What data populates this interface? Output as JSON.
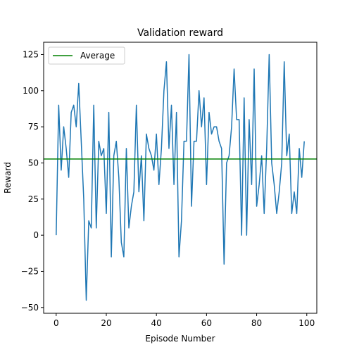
{
  "chart_data": {
    "type": "line",
    "title": "Validation reward",
    "xlabel": "Episode Number",
    "ylabel": "Reward",
    "xlim": [
      -5,
      104
    ],
    "ylim": [
      -54,
      133.5
    ],
    "xticks": [
      0,
      20,
      40,
      60,
      80,
      100
    ],
    "yticks": [
      -50,
      -25,
      0,
      25,
      50,
      75,
      100,
      125
    ],
    "grid": false,
    "legend_position": "upper-left",
    "series": [
      {
        "role": "data",
        "color": "#1f77b4",
        "x": [
          0,
          1,
          2,
          3,
          4,
          5,
          6,
          7,
          8,
          9,
          10,
          11,
          12,
          13,
          14,
          15,
          16,
          17,
          18,
          19,
          20,
          21,
          22,
          23,
          24,
          25,
          26,
          27,
          28,
          29,
          30,
          31,
          32,
          33,
          34,
          35,
          36,
          37,
          38,
          39,
          40,
          41,
          42,
          43,
          44,
          45,
          46,
          47,
          48,
          49,
          50,
          51,
          52,
          53,
          54,
          55,
          56,
          57,
          58,
          59,
          60,
          61,
          62,
          63,
          64,
          65,
          66,
          67,
          68,
          69,
          70,
          71,
          72,
          73,
          74,
          75,
          76,
          77,
          78,
          79,
          80,
          81,
          82,
          83,
          84,
          85,
          86,
          87,
          88,
          89,
          90,
          91,
          92,
          93,
          94,
          95,
          96,
          97,
          98,
          99
        ],
        "values": [
          0,
          90,
          45,
          75,
          60,
          40,
          85,
          90,
          75,
          105,
          65,
          25,
          -45,
          10,
          5,
          90,
          5,
          65,
          55,
          60,
          15,
          85,
          -15,
          55,
          65,
          40,
          -5,
          -15,
          60,
          5,
          20,
          30,
          90,
          30,
          55,
          10,
          70,
          60,
          55,
          45,
          70,
          35,
          60,
          100,
          120,
          60,
          90,
          35,
          85,
          -15,
          10,
          65,
          65,
          125,
          20,
          65,
          65,
          100,
          75,
          95,
          35,
          85,
          70,
          75,
          75,
          65,
          60,
          -20,
          50,
          55,
          75,
          115,
          80,
          80,
          0,
          95,
          0,
          80,
          35,
          115,
          20,
          35,
          55,
          15,
          60,
          125,
          50,
          35,
          15,
          30,
          50,
          120,
          55,
          70,
          15,
          30,
          15,
          60,
          40,
          65
        ]
      },
      {
        "role": "average",
        "name": "Average",
        "color": "#008000",
        "value": 52.7
      }
    ]
  }
}
